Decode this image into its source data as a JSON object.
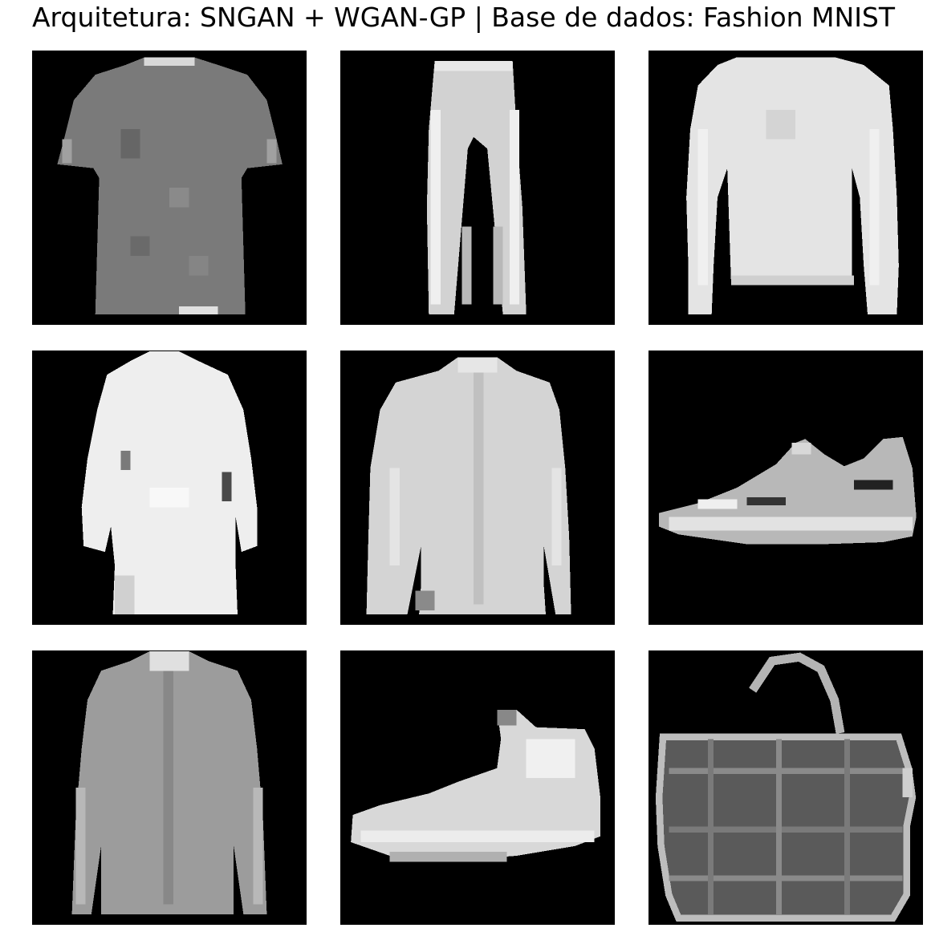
{
  "title": "Arquitetura: SNGAN + WGAN-GP | Base de dados: Fashion MNIST",
  "samples": [
    {
      "item": "t-shirt"
    },
    {
      "item": "trousers"
    },
    {
      "item": "pullover"
    },
    {
      "item": "dress"
    },
    {
      "item": "shirt"
    },
    {
      "item": "sneaker"
    },
    {
      "item": "shirt"
    },
    {
      "item": "ankle-boot"
    },
    {
      "item": "bag"
    }
  ]
}
